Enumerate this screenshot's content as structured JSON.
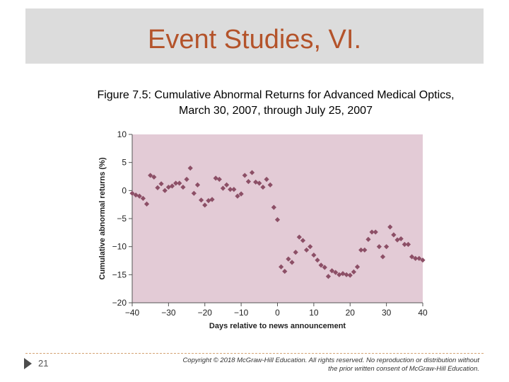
{
  "slide": {
    "title": "Event Studies, VI.",
    "caption_line1": "Figure 7.5: Cumulative Abnormal Returns for Advanced Medical Optics,",
    "caption_line2": "March 30, 2007, through July 25, 2007",
    "slide_number": "21",
    "copyright_line1": "Copyright © 2018 McGraw-Hill Education. All rights reserved. No reproduction or distribution without",
    "copyright_line2": "the prior written consent of McGraw-Hill Education."
  },
  "colors": {
    "title": "#b4532a",
    "plot_background": "#e3cbd6",
    "marker": "#8c4f66",
    "footer_rule": "#d4a373"
  },
  "chart_data": {
    "type": "scatter",
    "title": "",
    "xlabel": "Days relative to news announcement",
    "ylabel": "Cumulative abnormal returns (%)",
    "xlim": [
      -40,
      40
    ],
    "ylim": [
      -20,
      10
    ],
    "xticks": [
      -40,
      -30,
      -20,
      -10,
      0,
      10,
      20,
      30,
      40
    ],
    "xtick_labels": [
      "−40",
      "−30",
      "−20",
      "−10",
      "0",
      "10",
      "20",
      "30",
      "40"
    ],
    "yticks": [
      10,
      5,
      0,
      -5,
      -10,
      -15,
      -20
    ],
    "ytick_labels": [
      "10",
      "5",
      "0",
      "−5",
      "−10",
      "−15",
      "−20"
    ],
    "grid": false,
    "marker": "diamond",
    "x": [
      -40,
      -39,
      -38,
      -37,
      -36,
      -35,
      -34,
      -33,
      -32,
      -31,
      -30,
      -29,
      -28,
      -27,
      -26,
      -25,
      -24,
      -23,
      -22,
      -21,
      -20,
      -19,
      -18,
      -17,
      -16,
      -15,
      -14,
      -13,
      -12,
      -11,
      -10,
      -9,
      -8,
      -7,
      -6,
      -5,
      -4,
      -3,
      -2,
      -1,
      0,
      1,
      2,
      3,
      4,
      5,
      6,
      7,
      8,
      9,
      10,
      11,
      12,
      13,
      14,
      15,
      16,
      17,
      18,
      19,
      20,
      21,
      22,
      23,
      24,
      25,
      26,
      27,
      28,
      29,
      30,
      31,
      32,
      33,
      34,
      35,
      36,
      37,
      38,
      39,
      40
    ],
    "y": [
      -0.5,
      -0.8,
      -1.0,
      -1.4,
      -2.4,
      2.7,
      2.4,
      0.5,
      1.2,
      0.0,
      0.6,
      0.8,
      1.3,
      1.3,
      0.6,
      2.0,
      4.0,
      -0.5,
      1.0,
      -1.7,
      -2.6,
      -1.8,
      -1.6,
      2.2,
      2.0,
      0.4,
      1.0,
      0.2,
      0.2,
      -1.0,
      -0.6,
      2.7,
      1.6,
      3.2,
      1.5,
      1.3,
      0.6,
      2.0,
      1.0,
      -3.0,
      -5.2,
      -13.6,
      -14.4,
      -12.2,
      -12.8,
      -11.0,
      -8.3,
      -8.9,
      -10.6,
      -10.0,
      -11.5,
      -12.4,
      -13.3,
      -13.7,
      -15.3,
      -14.3,
      -14.6,
      -15.0,
      -14.8,
      -15.0,
      -15.1,
      -14.5,
      -13.6,
      -10.6,
      -10.6,
      -8.7,
      -7.4,
      -7.4,
      -10.0,
      -11.8,
      -10.0,
      -6.5,
      -7.9,
      -8.8,
      -8.6,
      -9.6,
      -9.6,
      -11.8,
      -12.1,
      -12.1,
      -12.4
    ]
  }
}
